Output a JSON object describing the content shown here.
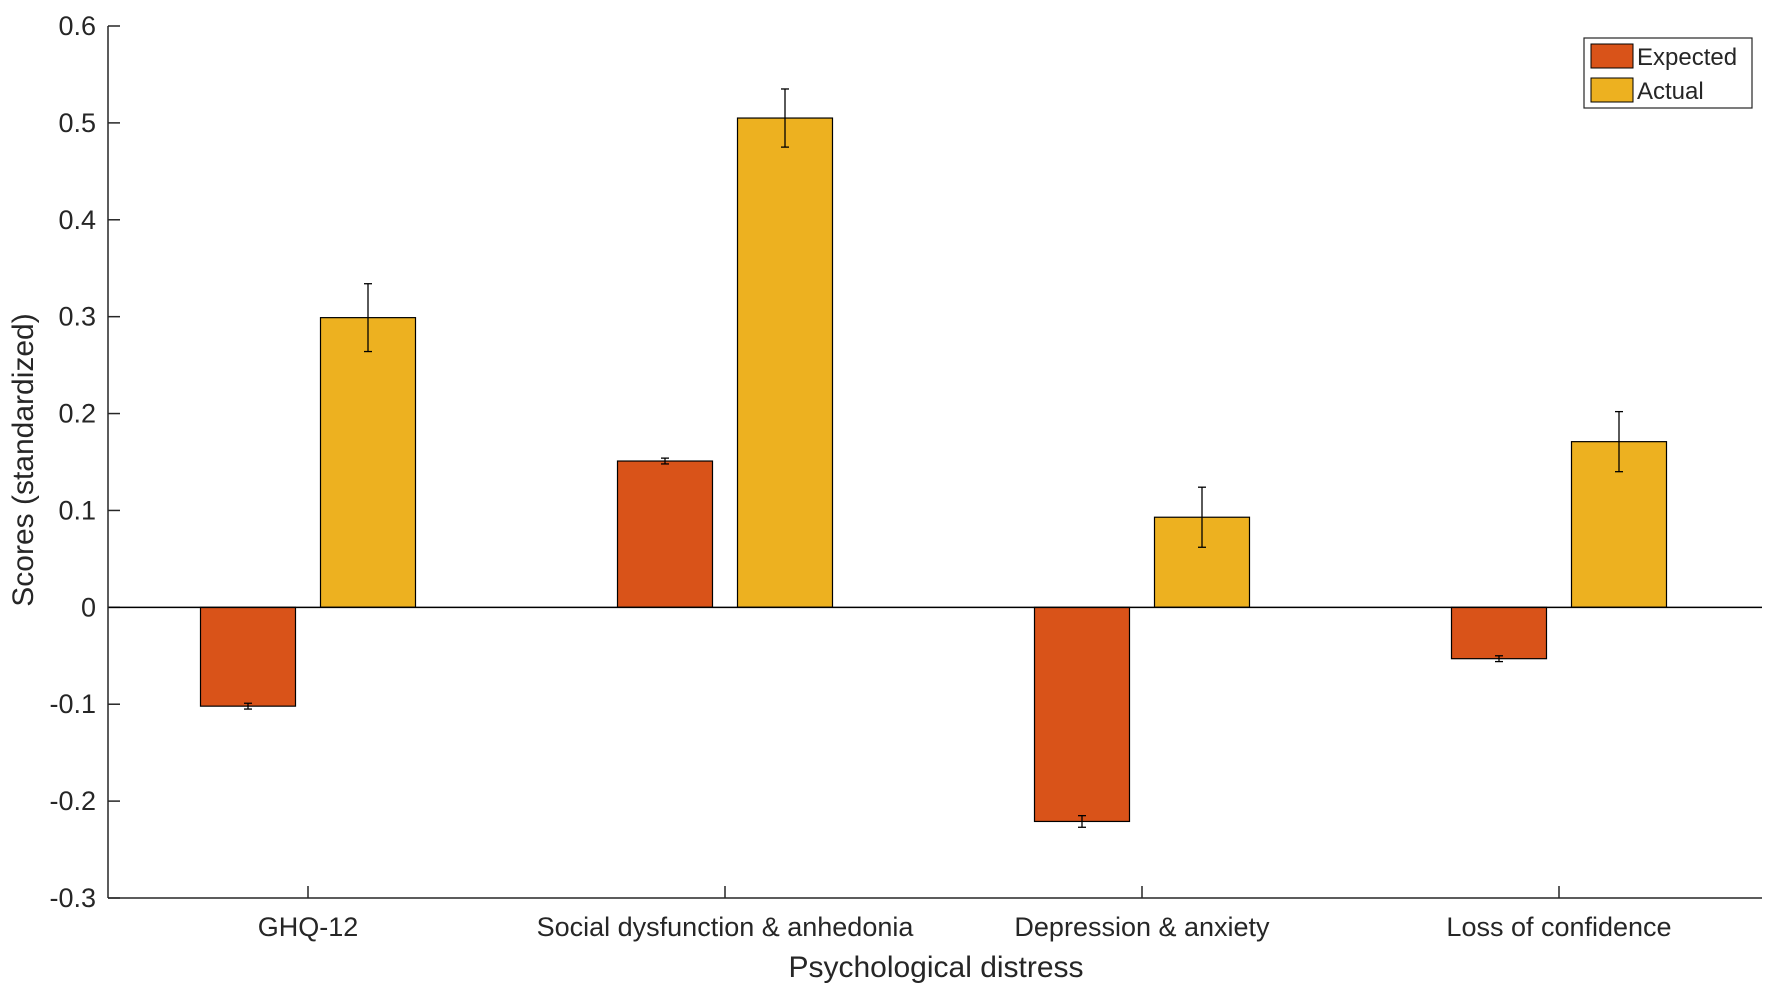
{
  "chart_data": {
    "type": "bar",
    "title": "",
    "xlabel": "Psychological distress",
    "ylabel": "Scores (standardized)",
    "ylim": [
      -0.3,
      0.6
    ],
    "yticks": [
      "-0.3",
      "-0.2",
      "-0.1",
      "0",
      "0.1",
      "0.2",
      "0.3",
      "0.4",
      "0.5",
      "0.6"
    ],
    "categories": [
      "GHQ-12",
      "Social dysfunction & anhedonia",
      "Depression & anxiety",
      "Loss of confidence"
    ],
    "series": [
      {
        "name": "Expected",
        "color": "#D95319",
        "values": [
          -0.102,
          0.151,
          -0.221,
          -0.053
        ],
        "errors": [
          0.003,
          0.003,
          0.006,
          0.003
        ]
      },
      {
        "name": "Actual",
        "color": "#EDB120",
        "values": [
          0.299,
          0.505,
          0.093,
          0.171
        ],
        "errors": [
          0.035,
          0.03,
          0.031,
          0.031
        ]
      }
    ],
    "legend": {
      "position": "top-right"
    },
    "grid": false
  }
}
